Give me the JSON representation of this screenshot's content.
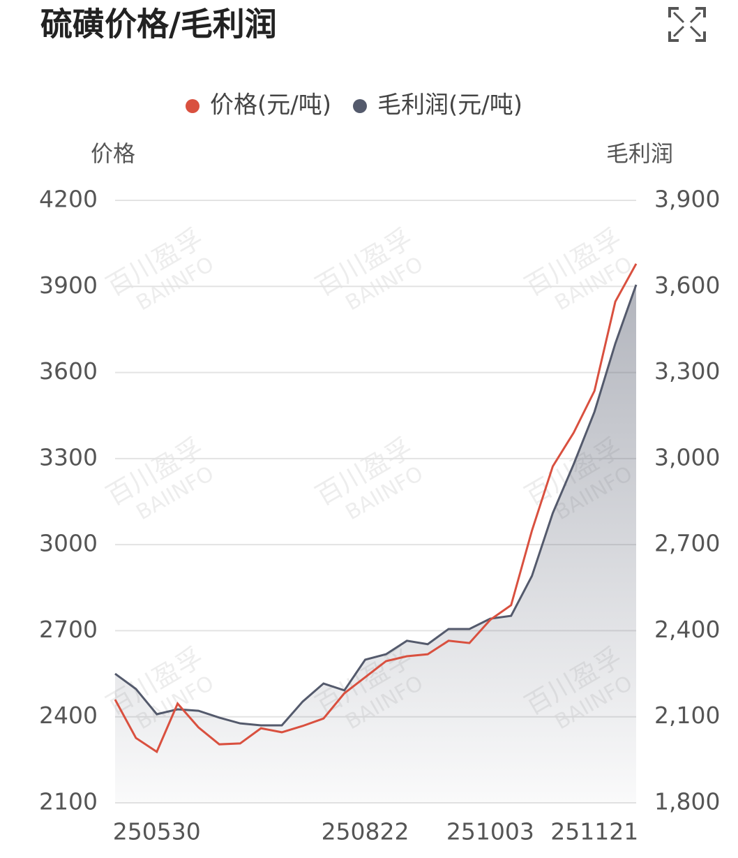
{
  "chart_data": {
    "type": "line",
    "title": "硫磺价格/毛利润",
    "y_label": "价格",
    "y2_label": "毛利润",
    "watermark": [
      "百川盈孚",
      "BAIINFO"
    ],
    "categories": [
      null,
      null,
      "250530",
      null,
      null,
      null,
      null,
      null,
      null,
      null,
      null,
      null,
      "250822",
      null,
      null,
      null,
      null,
      null,
      "251003",
      null,
      null,
      null,
      null,
      "251121",
      null,
      null
    ],
    "series": [
      {
        "name": "价格(元/吨)",
        "color": "#d9503f",
        "axis": "y",
        "values": [
          2460,
          2326,
          2278,
          2446,
          2363,
          2304,
          2307,
          2360,
          2346,
          2368,
          2394,
          2482,
          2538,
          2594,
          2611,
          2618,
          2665,
          2657,
          2738,
          2789,
          3049,
          3273,
          3390,
          3536,
          3847,
          3979
        ]
      },
      {
        "name": "毛利润(元/吨)",
        "color": "#545a6c",
        "axis": "y2",
        "area": true,
        "values": [
          2250,
          2197,
          2109,
          2126,
          2121,
          2097,
          2077,
          2070,
          2070,
          2153,
          2216,
          2192,
          2299,
          2318,
          2365,
          2353,
          2406,
          2406,
          2442,
          2452,
          2591,
          2810,
          2980,
          3163,
          3401,
          3606
        ]
      }
    ],
    "ylim": [
      2100,
      4200
    ],
    "yticks": [
      2100,
      2400,
      2700,
      3000,
      3300,
      3600,
      3900,
      4200
    ],
    "y2lim": [
      1800,
      3900
    ],
    "y2ticks": [
      {
        "value": 1800,
        "label": "1,800"
      },
      {
        "value": 2100,
        "label": "2,100"
      },
      {
        "value": 2400,
        "label": "2,400"
      },
      {
        "value": 2700,
        "label": "2,700"
      },
      {
        "value": 3000,
        "label": "3,000"
      },
      {
        "value": 3300,
        "label": "3,300"
      },
      {
        "value": 3600,
        "label": "3,600"
      },
      {
        "value": 3900,
        "label": "3,900"
      }
    ],
    "grid": true,
    "legend": "top"
  }
}
